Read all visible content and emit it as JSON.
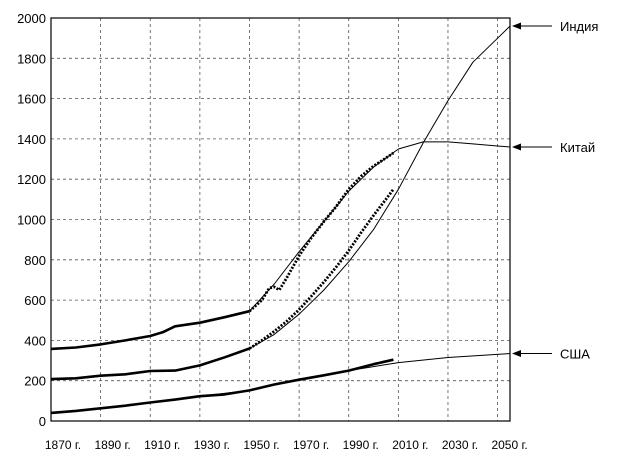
{
  "chart_data": {
    "type": "line",
    "title": "",
    "xlabel": "",
    "ylabel": "",
    "xlim": [
      1870,
      2055
    ],
    "ylim": [
      0,
      2000
    ],
    "grid": true,
    "x_ticks": [
      1870,
      1890,
      1910,
      1930,
      1950,
      1970,
      1990,
      2010,
      2030,
      2050
    ],
    "x_tick_labels": [
      "1870 г.",
      "1890 г.",
      "1910 г.",
      "1930 г.",
      "1950 г.",
      "1970 г.",
      "1990 г.",
      "2010 г.",
      "2030 г.",
      "2050 г."
    ],
    "y_ticks": [
      0,
      200,
      400,
      600,
      800,
      1000,
      1200,
      1400,
      1600,
      1800,
      2000
    ],
    "y_tick_labels": [
      "0",
      "200",
      "400",
      "600",
      "800",
      "1000",
      "1200",
      "1400",
      "1600",
      "1800",
      "2000"
    ],
    "series": [
      {
        "name": "Индия",
        "historical": {
          "x": [
            1870,
            1880,
            1890,
            1900,
            1910,
            1920,
            1930,
            1940,
            1950
          ],
          "y": [
            208,
            212,
            225,
            232,
            248,
            250,
            276,
            316,
            360
          ]
        },
        "estimate": {
          "x": [
            1950,
            1955,
            1960,
            1965,
            1970,
            1975,
            1980,
            1985,
            1990,
            1995,
            2000,
            2005,
            2008
          ],
          "y": [
            360,
            400,
            445,
            495,
            553,
            620,
            690,
            765,
            845,
            935,
            1020,
            1100,
            1150
          ]
        },
        "projection": {
          "x": [
            1950,
            1960,
            1970,
            1980,
            1990,
            2000,
            2010,
            2020,
            2030,
            2040,
            2050,
            2055
          ],
          "y": [
            360,
            430,
            530,
            650,
            790,
            950,
            1150,
            1380,
            1590,
            1780,
            1900,
            1960
          ]
        }
      },
      {
        "name": "Китай",
        "historical": {
          "x": [
            1870,
            1880,
            1890,
            1900,
            1910,
            1915,
            1920,
            1930,
            1940,
            1950
          ],
          "y": [
            358,
            365,
            380,
            400,
            422,
            440,
            470,
            488,
            515,
            545
          ]
        },
        "estimate": {
          "x": [
            1950,
            1955,
            1958,
            1960,
            1962,
            1965,
            1970,
            1975,
            1980,
            1985,
            1990,
            1995,
            2000,
            2005,
            2008
          ],
          "y": [
            545,
            600,
            660,
            665,
            650,
            710,
            820,
            910,
            990,
            1065,
            1150,
            1215,
            1265,
            1305,
            1330
          ]
        },
        "projection": {
          "x": [
            1950,
            1960,
            1970,
            1980,
            1990,
            2000,
            2010,
            2020,
            2030,
            2040,
            2050,
            2055
          ],
          "y": [
            545,
            680,
            840,
            990,
            1140,
            1260,
            1350,
            1385,
            1385,
            1375,
            1365,
            1360
          ]
        }
      },
      {
        "name": "США",
        "historical": {
          "x": [
            1870,
            1880,
            1890,
            1900,
            1910,
            1920,
            1930,
            1940,
            1950,
            1960,
            1970,
            1980,
            1990,
            2000,
            2008
          ],
          "y": [
            40,
            50,
            63,
            76,
            92,
            106,
            123,
            132,
            152,
            181,
            205,
            227,
            250,
            282,
            304
          ]
        },
        "projection": {
          "x": [
            1870,
            1890,
            1910,
            1930,
            1950,
            1970,
            1990,
            2010,
            2030,
            2055
          ],
          "y": [
            40,
            63,
            92,
            123,
            152,
            205,
            250,
            290,
            315,
            335
          ]
        }
      }
    ],
    "legend_placement": "right"
  }
}
